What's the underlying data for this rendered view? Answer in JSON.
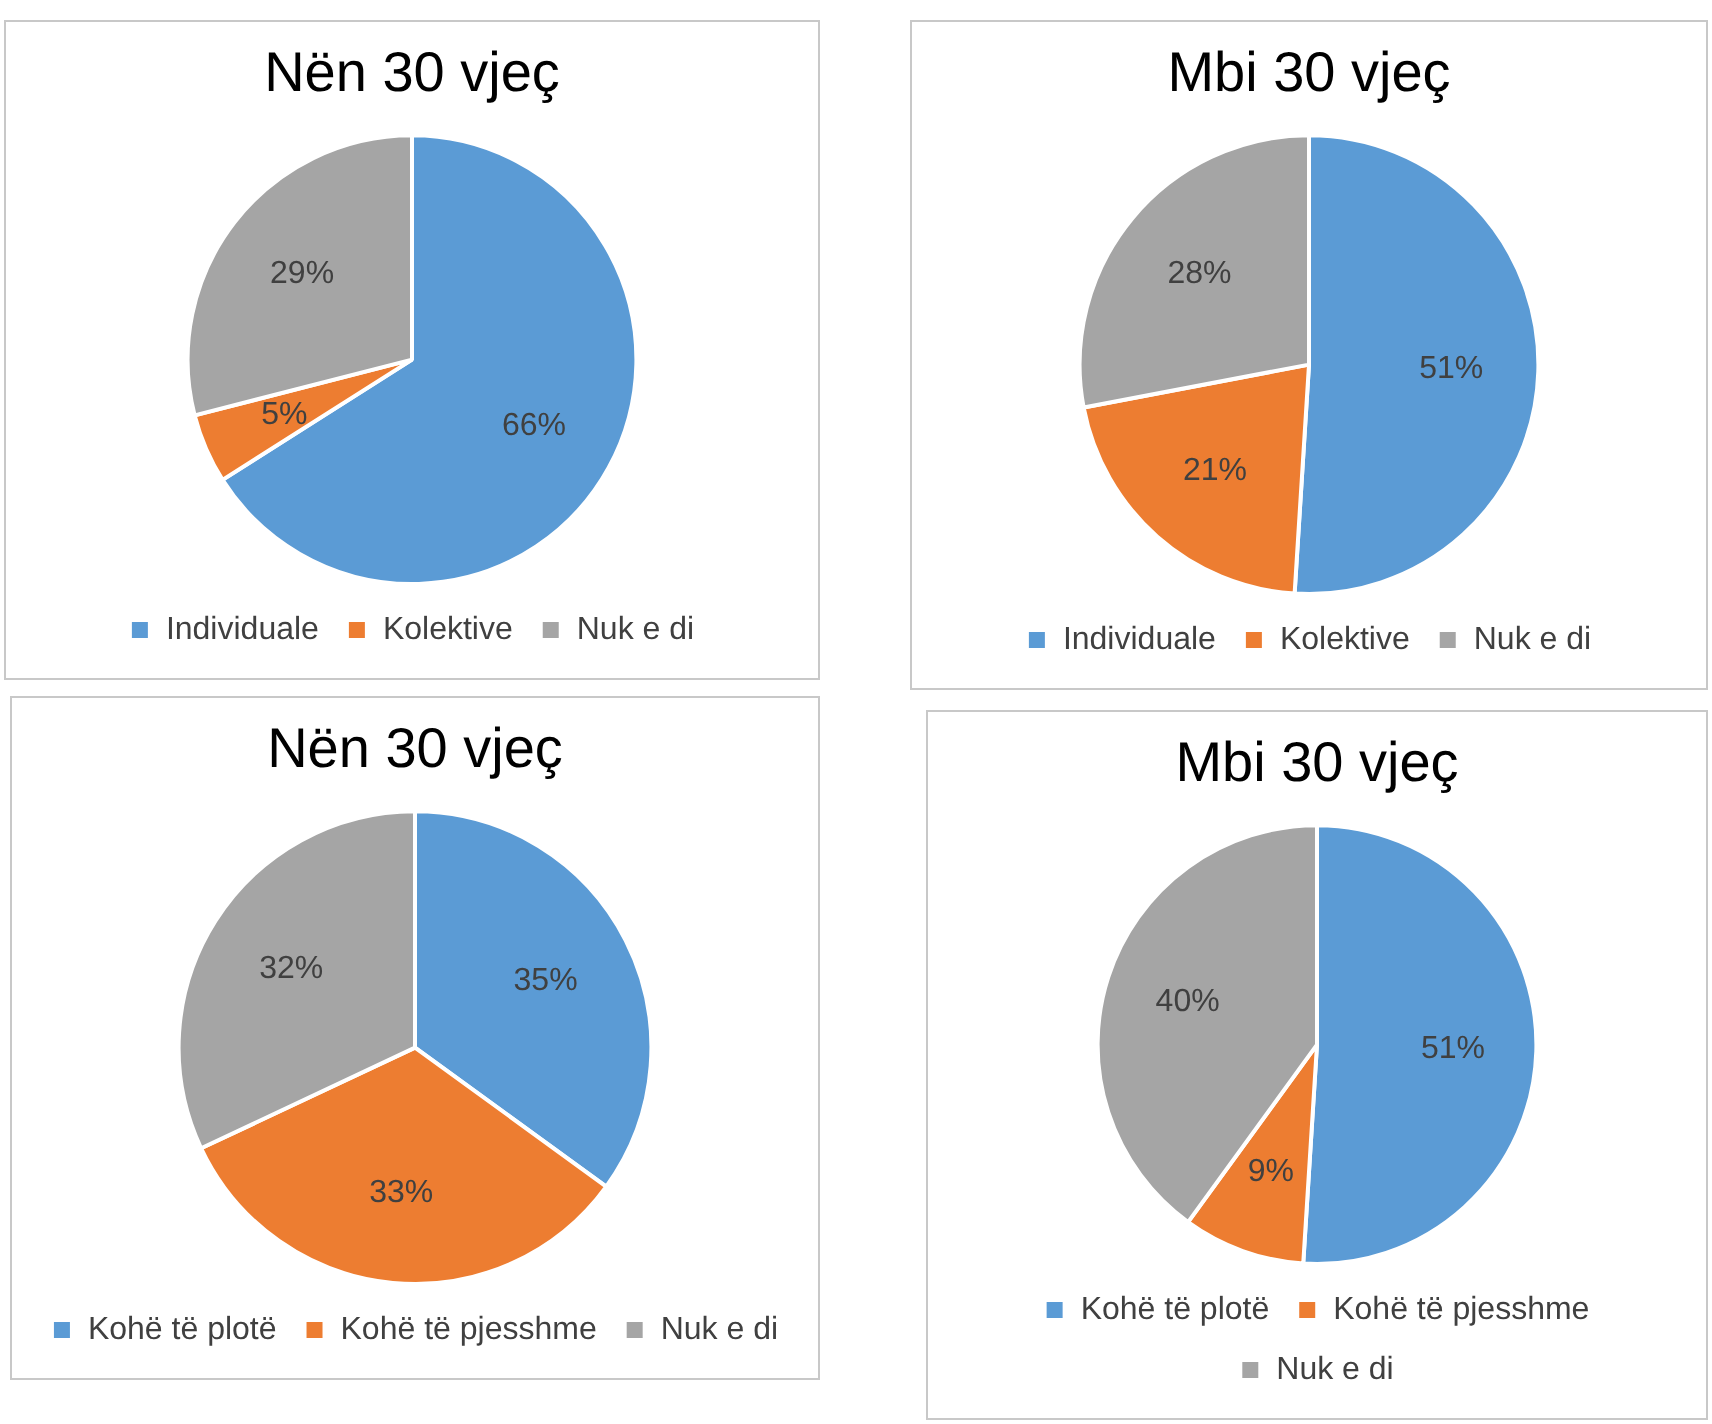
{
  "chart_data": [
    {
      "type": "pie",
      "title": "Nën 30 vjeç",
      "categories": [
        "Individuale",
        "Kolektive",
        "Nuk e di"
      ],
      "values": [
        66,
        5,
        29
      ],
      "value_labels": [
        "66%",
        "5%",
        "29%"
      ],
      "colors": [
        "#5b9bd5",
        "#ed7d31",
        "#a5a5a5"
      ],
      "legend": "bottom"
    },
    {
      "type": "pie",
      "title": "Mbi 30 vjeç",
      "categories": [
        "Individuale",
        "Kolektive",
        "Nuk e di"
      ],
      "values": [
        51,
        21,
        28
      ],
      "value_labels": [
        "51%",
        "21%",
        "28%"
      ],
      "colors": [
        "#5b9bd5",
        "#ed7d31",
        "#a5a5a5"
      ],
      "legend": "bottom"
    },
    {
      "type": "pie",
      "title": "Nën 30 vjeç",
      "categories": [
        "Kohë të plotë",
        "Kohë të pjesshme",
        "Nuk e di"
      ],
      "values": [
        35,
        33,
        32
      ],
      "value_labels": [
        "35%",
        "33%",
        "32%"
      ],
      "colors": [
        "#5b9bd5",
        "#ed7d31",
        "#a5a5a5"
      ],
      "legend": "bottom"
    },
    {
      "type": "pie",
      "title": "Mbi 30 vjeç",
      "categories": [
        "Kohë të plotë",
        "Kohë të pjesshme",
        "Nuk e di"
      ],
      "values": [
        51,
        9,
        40
      ],
      "value_labels": [
        "51%",
        "9%",
        "40%"
      ],
      "colors": [
        "#5b9bd5",
        "#ed7d31",
        "#a5a5a5"
      ],
      "legend": "bottom"
    }
  ]
}
